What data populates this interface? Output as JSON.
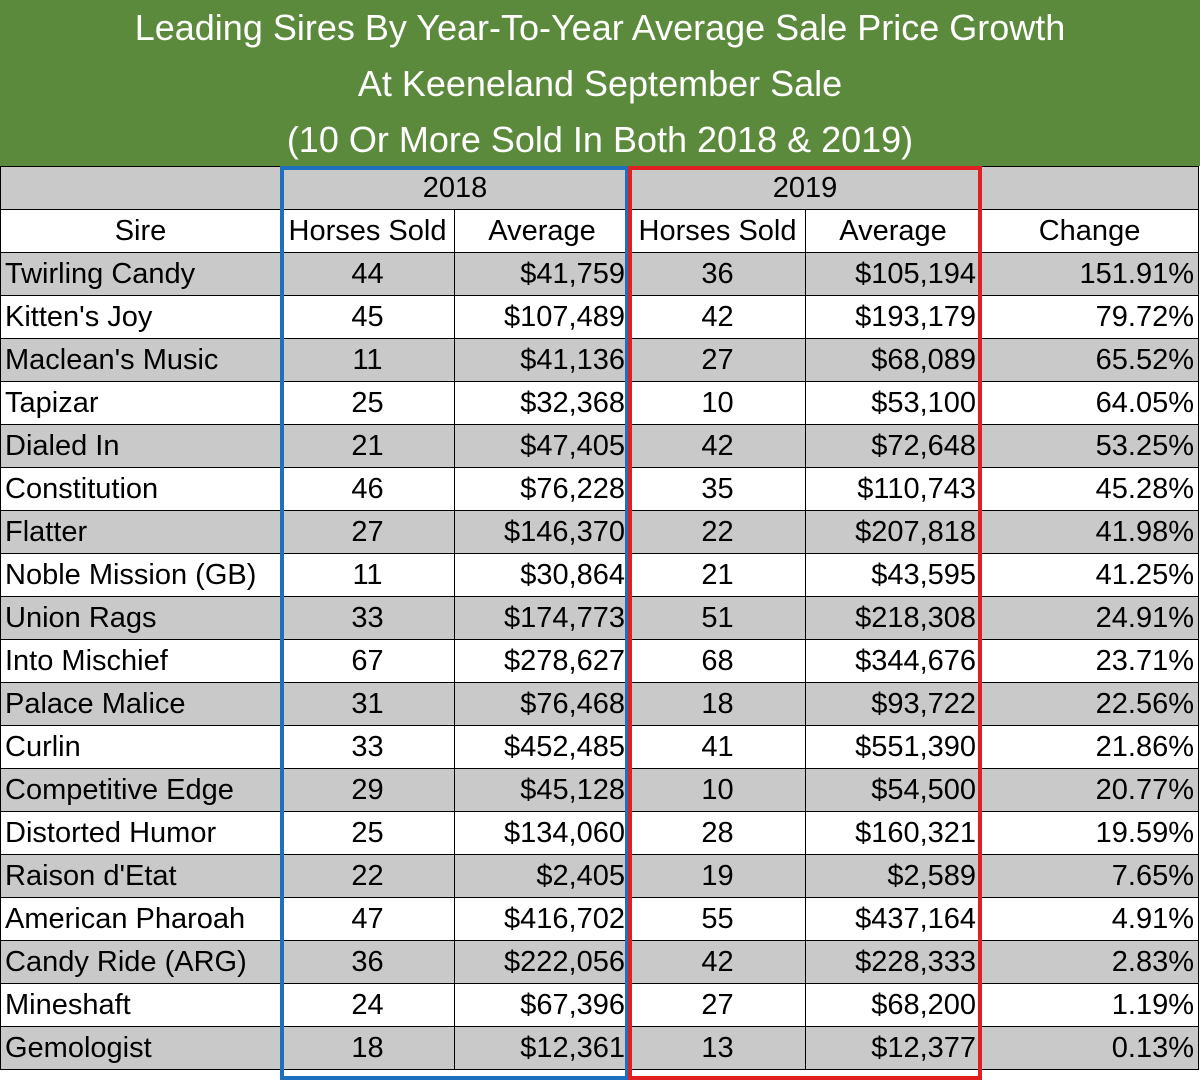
{
  "title": {
    "line1": "Leading Sires By Year-To-Year Average Sale Price Growth",
    "line2": "At Keeneland September Sale",
    "line3": "(10 Or More Sold In Both 2018 & 2019)"
  },
  "chart_data": {
    "type": "table",
    "year_headers": [
      "2018",
      "2019"
    ],
    "columns": [
      "Sire",
      "Horses Sold",
      "Average",
      "Horses Sold",
      "Average",
      "Change"
    ],
    "rows": [
      [
        "Twirling Candy",
        "44",
        "$41,759",
        "36",
        "$105,194",
        "151.91%"
      ],
      [
        "Kitten's Joy",
        "45",
        "$107,489",
        "42",
        "$193,179",
        "79.72%"
      ],
      [
        "Maclean's Music",
        "11",
        "$41,136",
        "27",
        "$68,089",
        "65.52%"
      ],
      [
        "Tapizar",
        "25",
        "$32,368",
        "10",
        "$53,100",
        "64.05%"
      ],
      [
        "Dialed In",
        "21",
        "$47,405",
        "42",
        "$72,648",
        "53.25%"
      ],
      [
        "Constitution",
        "46",
        "$76,228",
        "35",
        "$110,743",
        "45.28%"
      ],
      [
        "Flatter",
        "27",
        "$146,370",
        "22",
        "$207,818",
        "41.98%"
      ],
      [
        "Noble Mission (GB)",
        "11",
        "$30,864",
        "21",
        "$43,595",
        "41.25%"
      ],
      [
        "Union Rags",
        "33",
        "$174,773",
        "51",
        "$218,308",
        "24.91%"
      ],
      [
        "Into Mischief",
        "67",
        "$278,627",
        "68",
        "$344,676",
        "23.71%"
      ],
      [
        "Palace Malice",
        "31",
        "$76,468",
        "18",
        "$93,722",
        "22.56%"
      ],
      [
        "Curlin",
        "33",
        "$452,485",
        "41",
        "$551,390",
        "21.86%"
      ],
      [
        "Competitive Edge",
        "29",
        "$45,128",
        "10",
        "$54,500",
        "20.77%"
      ],
      [
        "Distorted Humor",
        "25",
        "$134,060",
        "28",
        "$160,321",
        "19.59%"
      ],
      [
        "Raison d'Etat",
        "22",
        "$2,405",
        "19",
        "$2,589",
        "7.65%"
      ],
      [
        "American Pharoah",
        "47",
        "$416,702",
        "55",
        "$437,164",
        "4.91%"
      ],
      [
        "Candy Ride (ARG)",
        "36",
        "$222,056",
        "42",
        "$228,333",
        "2.83%"
      ],
      [
        "Mineshaft",
        "24",
        "$67,396",
        "27",
        "$68,200",
        "1.19%"
      ],
      [
        "Gemologist",
        "18",
        "$12,361",
        "13",
        "$12,377",
        "0.13%"
      ]
    ]
  },
  "colors": {
    "header_bg": "#5c8a3c",
    "row_gray": "#c9c9c9",
    "frame_2018": "#1f6fbf",
    "frame_2019": "#e02020"
  }
}
